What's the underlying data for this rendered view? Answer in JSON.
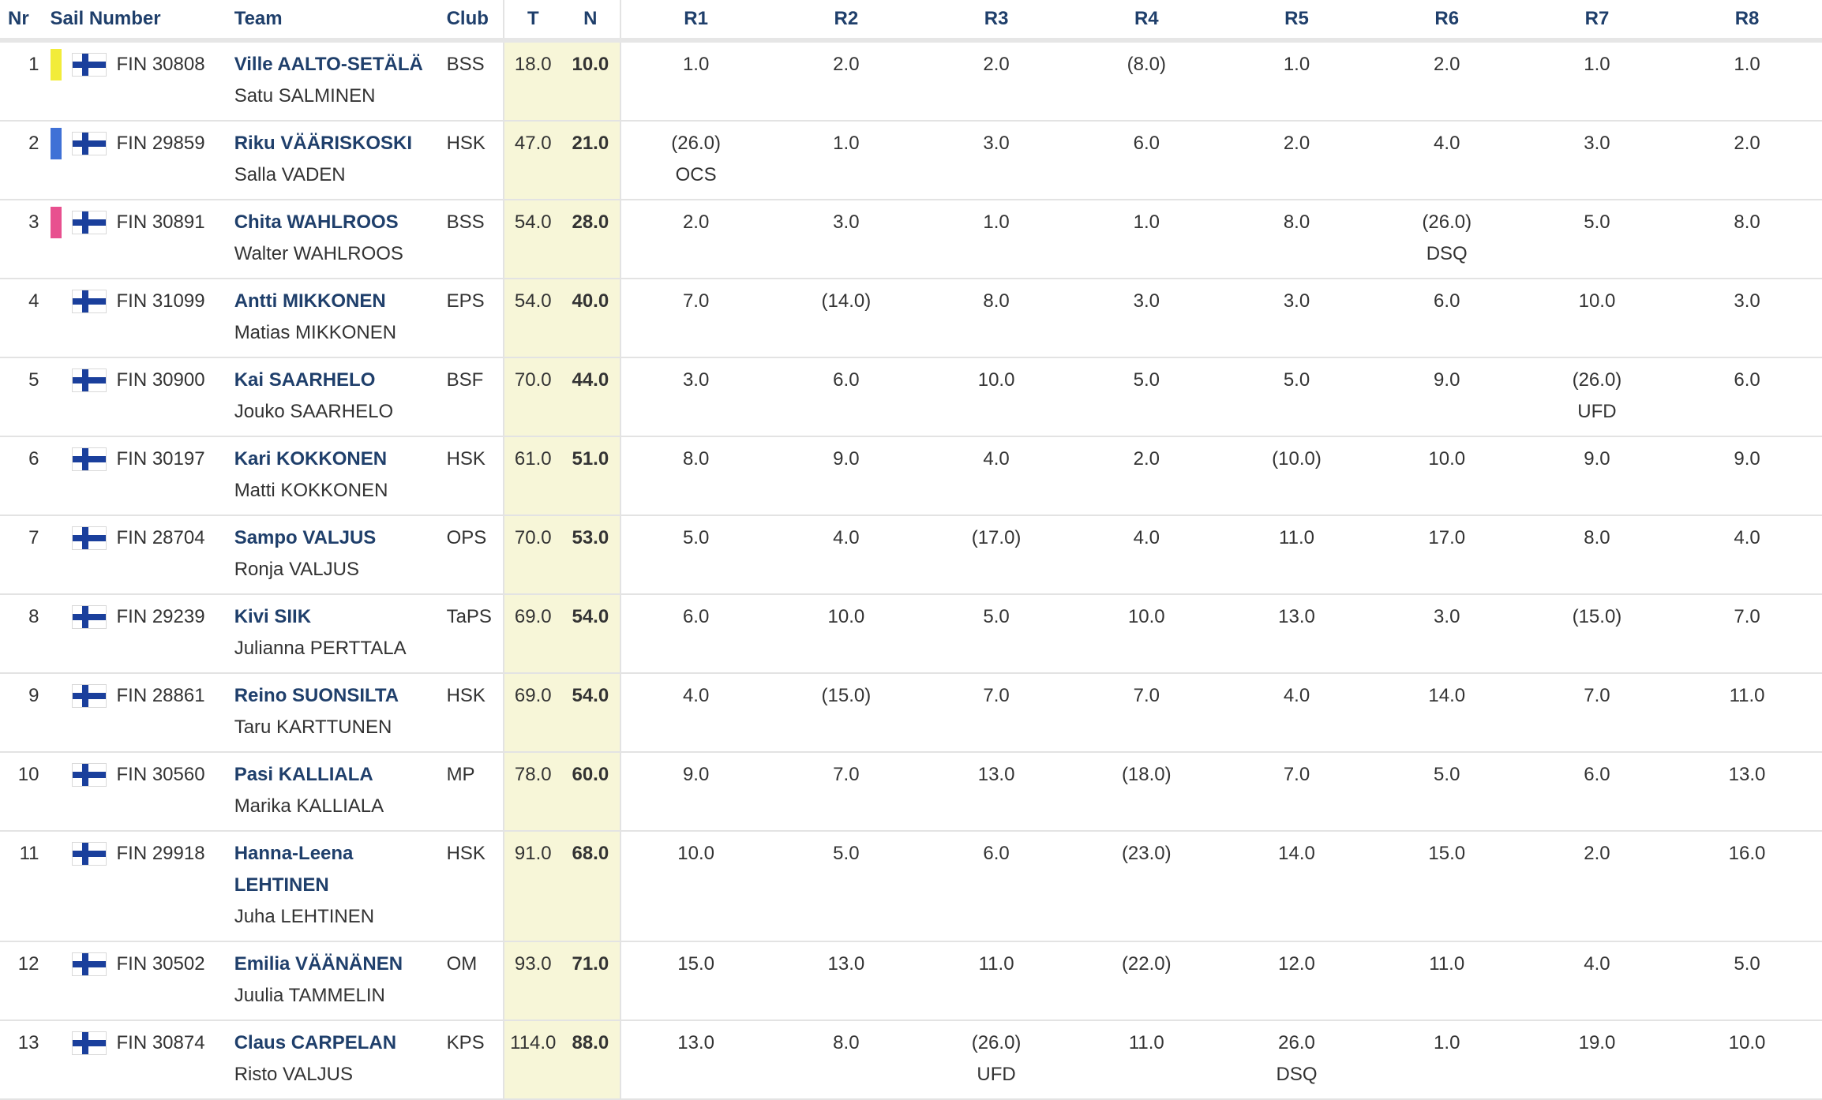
{
  "colors": {
    "header_text": "#1f3f6b",
    "highlight_col": "#f7f6d8",
    "gold": "#f2ec3a",
    "silver": "#3f71d6",
    "bronze": "#e8508f"
  },
  "headers": {
    "nr": "Nr",
    "sail": "Sail Number",
    "team": "Team",
    "club": "Club",
    "t": "T",
    "n": "N",
    "r": [
      "R1",
      "R2",
      "R3",
      "R4",
      "R5",
      "R6",
      "R7",
      "R8"
    ]
  },
  "rows": [
    {
      "nr": "1",
      "medal": "#f2ec3a",
      "flag": "finland-flag-icon",
      "sail": "FIN 30808",
      "skipper": "Ville AALTO-SETÄLÄ",
      "crew": "Satu SALMINEN",
      "club": "BSS",
      "t": "18.0",
      "n": "10.0",
      "r": [
        {
          "v": "1.0",
          "c": ""
        },
        {
          "v": "2.0",
          "c": ""
        },
        {
          "v": "2.0",
          "c": ""
        },
        {
          "v": "(8.0)",
          "c": ""
        },
        {
          "v": "1.0",
          "c": ""
        },
        {
          "v": "2.0",
          "c": ""
        },
        {
          "v": "1.0",
          "c": ""
        },
        {
          "v": "1.0",
          "c": ""
        }
      ]
    },
    {
      "nr": "2",
      "medal": "#3f71d6",
      "flag": "finland-flag-icon",
      "sail": "FIN 29859",
      "skipper": "Riku VÄÄRISKOSKI",
      "crew": "Salla VADEN",
      "club": "HSK",
      "t": "47.0",
      "n": "21.0",
      "r": [
        {
          "v": "(26.0)",
          "c": "OCS"
        },
        {
          "v": "1.0",
          "c": ""
        },
        {
          "v": "3.0",
          "c": ""
        },
        {
          "v": "6.0",
          "c": ""
        },
        {
          "v": "2.0",
          "c": ""
        },
        {
          "v": "4.0",
          "c": ""
        },
        {
          "v": "3.0",
          "c": ""
        },
        {
          "v": "2.0",
          "c": ""
        }
      ]
    },
    {
      "nr": "3",
      "medal": "#e8508f",
      "flag": "finland-flag-icon",
      "sail": "FIN 30891",
      "skipper": "Chita WAHLROOS",
      "crew": "Walter WAHLROOS",
      "club": "BSS",
      "t": "54.0",
      "n": "28.0",
      "r": [
        {
          "v": "2.0",
          "c": ""
        },
        {
          "v": "3.0",
          "c": ""
        },
        {
          "v": "1.0",
          "c": ""
        },
        {
          "v": "1.0",
          "c": ""
        },
        {
          "v": "8.0",
          "c": ""
        },
        {
          "v": "(26.0)",
          "c": "DSQ"
        },
        {
          "v": "5.0",
          "c": ""
        },
        {
          "v": "8.0",
          "c": ""
        }
      ]
    },
    {
      "nr": "4",
      "medal": "",
      "flag": "finland-flag-icon",
      "sail": "FIN 31099",
      "skipper": "Antti MIKKONEN",
      "crew": "Matias MIKKONEN",
      "club": "EPS",
      "t": "54.0",
      "n": "40.0",
      "r": [
        {
          "v": "7.0",
          "c": ""
        },
        {
          "v": "(14.0)",
          "c": ""
        },
        {
          "v": "8.0",
          "c": ""
        },
        {
          "v": "3.0",
          "c": ""
        },
        {
          "v": "3.0",
          "c": ""
        },
        {
          "v": "6.0",
          "c": ""
        },
        {
          "v": "10.0",
          "c": ""
        },
        {
          "v": "3.0",
          "c": ""
        }
      ]
    },
    {
      "nr": "5",
      "medal": "",
      "flag": "finland-flag-icon",
      "sail": "FIN 30900",
      "skipper": "Kai SAARHELO",
      "crew": "Jouko SAARHELO",
      "club": "BSF",
      "t": "70.0",
      "n": "44.0",
      "r": [
        {
          "v": "3.0",
          "c": ""
        },
        {
          "v": "6.0",
          "c": ""
        },
        {
          "v": "10.0",
          "c": ""
        },
        {
          "v": "5.0",
          "c": ""
        },
        {
          "v": "5.0",
          "c": ""
        },
        {
          "v": "9.0",
          "c": ""
        },
        {
          "v": "(26.0)",
          "c": "UFD"
        },
        {
          "v": "6.0",
          "c": ""
        }
      ]
    },
    {
      "nr": "6",
      "medal": "",
      "flag": "finland-flag-icon",
      "sail": "FIN 30197",
      "skipper": "Kari KOKKONEN",
      "crew": "Matti KOKKONEN",
      "club": "HSK",
      "t": "61.0",
      "n": "51.0",
      "r": [
        {
          "v": "8.0",
          "c": ""
        },
        {
          "v": "9.0",
          "c": ""
        },
        {
          "v": "4.0",
          "c": ""
        },
        {
          "v": "2.0",
          "c": ""
        },
        {
          "v": "(10.0)",
          "c": ""
        },
        {
          "v": "10.0",
          "c": ""
        },
        {
          "v": "9.0",
          "c": ""
        },
        {
          "v": "9.0",
          "c": ""
        }
      ]
    },
    {
      "nr": "7",
      "medal": "",
      "flag": "finland-flag-icon",
      "sail": "FIN 28704",
      "skipper": "Sampo VALJUS",
      "crew": "Ronja VALJUS",
      "club": "OPS",
      "t": "70.0",
      "n": "53.0",
      "r": [
        {
          "v": "5.0",
          "c": ""
        },
        {
          "v": "4.0",
          "c": ""
        },
        {
          "v": "(17.0)",
          "c": ""
        },
        {
          "v": "4.0",
          "c": ""
        },
        {
          "v": "11.0",
          "c": ""
        },
        {
          "v": "17.0",
          "c": ""
        },
        {
          "v": "8.0",
          "c": ""
        },
        {
          "v": "4.0",
          "c": ""
        }
      ]
    },
    {
      "nr": "8",
      "medal": "",
      "flag": "finland-flag-icon",
      "sail": "FIN 29239",
      "skipper": "Kivi SIIK",
      "crew": "Julianna PERTTALA",
      "club": "TaPS",
      "t": "69.0",
      "n": "54.0",
      "r": [
        {
          "v": "6.0",
          "c": ""
        },
        {
          "v": "10.0",
          "c": ""
        },
        {
          "v": "5.0",
          "c": ""
        },
        {
          "v": "10.0",
          "c": ""
        },
        {
          "v": "13.0",
          "c": ""
        },
        {
          "v": "3.0",
          "c": ""
        },
        {
          "v": "(15.0)",
          "c": ""
        },
        {
          "v": "7.0",
          "c": ""
        }
      ]
    },
    {
      "nr": "9",
      "medal": "",
      "flag": "finland-flag-icon",
      "sail": "FIN 28861",
      "skipper": "Reino SUONSILTA",
      "crew": "Taru KARTTUNEN",
      "club": "HSK",
      "t": "69.0",
      "n": "54.0",
      "r": [
        {
          "v": "4.0",
          "c": ""
        },
        {
          "v": "(15.0)",
          "c": ""
        },
        {
          "v": "7.0",
          "c": ""
        },
        {
          "v": "7.0",
          "c": ""
        },
        {
          "v": "4.0",
          "c": ""
        },
        {
          "v": "14.0",
          "c": ""
        },
        {
          "v": "7.0",
          "c": ""
        },
        {
          "v": "11.0",
          "c": ""
        }
      ]
    },
    {
      "nr": "10",
      "medal": "",
      "flag": "finland-flag-icon",
      "sail": "FIN 30560",
      "skipper": "Pasi KALLIALA",
      "crew": "Marika KALLIALA",
      "club": "MP",
      "t": "78.0",
      "n": "60.0",
      "r": [
        {
          "v": "9.0",
          "c": ""
        },
        {
          "v": "7.0",
          "c": ""
        },
        {
          "v": "13.0",
          "c": ""
        },
        {
          "v": "(18.0)",
          "c": ""
        },
        {
          "v": "7.0",
          "c": ""
        },
        {
          "v": "5.0",
          "c": ""
        },
        {
          "v": "6.0",
          "c": ""
        },
        {
          "v": "13.0",
          "c": ""
        }
      ]
    },
    {
      "nr": "11",
      "medal": "",
      "flag": "finland-flag-icon",
      "sail": "FIN 29918",
      "skipper": "Hanna-Leena LEHTINEN",
      "crew": "Juha LEHTINEN",
      "club": "HSK",
      "t": "91.0",
      "n": "68.0",
      "r": [
        {
          "v": "10.0",
          "c": ""
        },
        {
          "v": "5.0",
          "c": ""
        },
        {
          "v": "6.0",
          "c": ""
        },
        {
          "v": "(23.0)",
          "c": ""
        },
        {
          "v": "14.0",
          "c": ""
        },
        {
          "v": "15.0",
          "c": ""
        },
        {
          "v": "2.0",
          "c": ""
        },
        {
          "v": "16.0",
          "c": ""
        }
      ]
    },
    {
      "nr": "12",
      "medal": "",
      "flag": "finland-flag-icon",
      "sail": "FIN 30502",
      "skipper": "Emilia VÄÄNÄNEN",
      "crew": "Juulia TAMMELIN",
      "club": "OM",
      "t": "93.0",
      "n": "71.0",
      "r": [
        {
          "v": "15.0",
          "c": ""
        },
        {
          "v": "13.0",
          "c": ""
        },
        {
          "v": "11.0",
          "c": ""
        },
        {
          "v": "(22.0)",
          "c": ""
        },
        {
          "v": "12.0",
          "c": ""
        },
        {
          "v": "11.0",
          "c": ""
        },
        {
          "v": "4.0",
          "c": ""
        },
        {
          "v": "5.0",
          "c": ""
        }
      ]
    },
    {
      "nr": "13",
      "medal": "",
      "flag": "finland-flag-icon",
      "sail": "FIN 30874",
      "skipper": "Claus CARPELAN",
      "crew": "Risto VALJUS",
      "club": "KPS",
      "t": "114.0",
      "n": "88.0",
      "r": [
        {
          "v": "13.0",
          "c": ""
        },
        {
          "v": "8.0",
          "c": ""
        },
        {
          "v": "(26.0)",
          "c": "UFD"
        },
        {
          "v": "11.0",
          "c": ""
        },
        {
          "v": "26.0",
          "c": "DSQ"
        },
        {
          "v": "1.0",
          "c": ""
        },
        {
          "v": "19.0",
          "c": ""
        },
        {
          "v": "10.0",
          "c": ""
        }
      ]
    }
  ]
}
